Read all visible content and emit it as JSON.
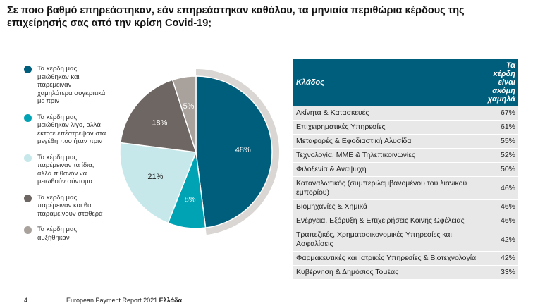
{
  "question": "Σε ποιο βαθμό επηρεάστηκαν, εάν επηρεάστηκαν καθόλου, τα μηνιαία περιθώρια κέρδους της επιχείρησής σας από την κρίση Covid-19;",
  "legend": [
    {
      "label": "Τα κέρδη μας μειώθηκαν και παρέμειναν χαμηλότερα συγκριτικά με πριν",
      "color": "#005e7d"
    },
    {
      "label": "Τα κέρδη μας μειώθηκαν λίγο, αλλά έκτοτε επέστρεψαν στα μεγέθη που ήταν πριν",
      "color": "#00a3b4"
    },
    {
      "label": "Τα κέρδη μας παρέμειναν τα ίδια, αλλά πιθανόν να μειωθούν σύντομα",
      "color": "#c6e8ea"
    },
    {
      "label": "Τα κέρδη μας παρέμειναν και θα παραμείνουν σταθερά",
      "color": "#6e6662"
    },
    {
      "label": "Τα κέρδη μας αυξήθηκαν",
      "color": "#a8a19c"
    }
  ],
  "chart_data": {
    "type": "pie",
    "slices": [
      {
        "value": 48,
        "label": "48%",
        "color": "#005e7d"
      },
      {
        "value": 8,
        "label": "8%",
        "color": "#00a3b4"
      },
      {
        "value": 21,
        "label": "21%",
        "color": "#c6e8ea"
      },
      {
        "value": 18,
        "label": "18%",
        "color": "#6e6662"
      },
      {
        "value": 5,
        "label": "5%",
        "color": "#a8a19c"
      }
    ],
    "start_angle_deg": 0,
    "direction": "clockwise"
  },
  "table": {
    "header_left": "Κλάδος",
    "header_right": "Τα κέρδη είναι ακόμη χαμηλά",
    "rows": [
      {
        "sector": "Ακίνητα & Κατασκευές",
        "value": "67%"
      },
      {
        "sector": "Επιχειρηματικές Υπηρεσίες",
        "value": "61%"
      },
      {
        "sector": "Μεταφορές & Εφοδιαστική Αλυσίδα",
        "value": "55%"
      },
      {
        "sector": "Τεχνολογία, ΜΜΕ & Τηλεπικοινωνίες",
        "value": "52%"
      },
      {
        "sector": "Φιλοξενία & Αναψυχή",
        "value": "50%"
      },
      {
        "sector": "Καταναλωτικός (συμπεριλαμβανομένου του λιανικού εμπορίου)",
        "value": "46%"
      },
      {
        "sector": "Βιομηχανίες & Χημικά",
        "value": "46%"
      },
      {
        "sector": "Ενέργεια, Εξόρυξη & Επιχειρήσεις Κοινής Ωφέλειας",
        "value": "46%"
      },
      {
        "sector": "Τραπεζικές, Χρηματοοικονομικές Υπηρεσίες και Ασφαλίσεις",
        "value": "42%"
      },
      {
        "sector": "Φαρμακευτικές και Ιατρικές Υπηρεσίες & Βιοτεχνολογία",
        "value": "42%"
      },
      {
        "sector": "Κυβέρνηση & Δημόσιος Τομέας",
        "value": "33%"
      }
    ]
  },
  "footer": {
    "page_number": "4",
    "report_title": "European Payment Report 2021",
    "country": "Ελλάδα"
  }
}
